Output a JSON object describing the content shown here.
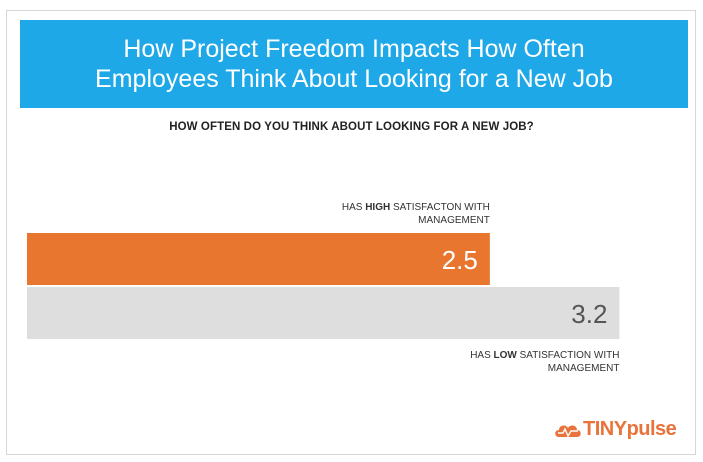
{
  "header": {
    "title_line1": "How Project Freedom Impacts How Often",
    "title_line2": "Employees Think About Looking for a New Job"
  },
  "question": "HOW OFTEN DO YOU THINK ABOUT LOOKING FOR A NEW JOB?",
  "colors": {
    "header_bg": "#1ea8e8",
    "high_bar": "#e8762f",
    "low_bar": "#dedede",
    "logo": "#e8743b"
  },
  "logo": {
    "part1": "TINY",
    "part2": "pulse",
    "icon": "pulse-cloud-icon"
  },
  "chart_data": {
    "type": "bar",
    "orientation": "horizontal",
    "categories": [
      [
        "HAS ",
        "HIGH",
        " SATISFACTON WITH",
        "MANAGEMENT"
      ],
      [
        "HAS ",
        "LOW",
        " SATISFACTION WITH",
        "MANAGEMENT"
      ]
    ],
    "values": [
      2.5,
      3.2
    ],
    "value_labels": [
      "2.5",
      "3.2"
    ],
    "colors": [
      "#e8762f",
      "#dedede"
    ],
    "value_label_colors": [
      "#ffffff",
      "#555555"
    ],
    "label_positions": [
      "above",
      "below"
    ],
    "xlim": [
      0,
      3.5
    ],
    "grid": false,
    "legend": "none"
  }
}
